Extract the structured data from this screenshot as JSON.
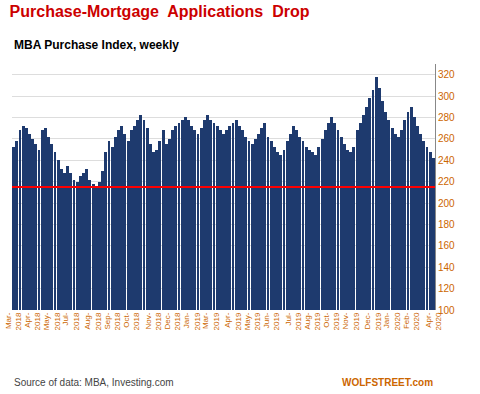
{
  "chart_data": {
    "type": "bar",
    "title": "Purchase-Mortgage  Applications  Drop",
    "title_color": "#cc0000",
    "subtitle": "MBA Purchase Index, weekly",
    "subtitle_color": "#000000",
    "annotations": [
      "Source of data: MBA, Investing.com",
      "WOLFSTREET.com"
    ],
    "color": "#1e3a6e",
    "reference_line": {
      "value": 215,
      "color": "red"
    },
    "ylim": [
      100,
      330
    ],
    "yticks": [
      100,
      120,
      140,
      160,
      180,
      200,
      220,
      240,
      260,
      280,
      300,
      320
    ],
    "grid": true,
    "categories": [
      "Mar-\n2018",
      null,
      null,
      null,
      null,
      null,
      "Apr-\n2018",
      null,
      null,
      null,
      null,
      null,
      "May-\n2018",
      null,
      null,
      null,
      null,
      null,
      "Jul-\n2018",
      null,
      null,
      null,
      null,
      null,
      null,
      "Aug-\n2018",
      null,
      null,
      null,
      null,
      null,
      "Sep-\n2018",
      null,
      null,
      null,
      null,
      null,
      "Oct-\n2018",
      null,
      null,
      null,
      null,
      null,
      null,
      "Nov-\n2018",
      null,
      null,
      null,
      null,
      null,
      "Dec-\n2018",
      null,
      null,
      null,
      null,
      null,
      "Jan-\n2019",
      null,
      null,
      null,
      null,
      null,
      "Mar-\n2019",
      null,
      null,
      null,
      null,
      null,
      null,
      "Apr-\n2019",
      null,
      null,
      null,
      null,
      null,
      "May-\n2019",
      null,
      null,
      null,
      null,
      null,
      "Jun-\n2019",
      null,
      null,
      null,
      null,
      null,
      null,
      "Jul-\n2019",
      null,
      null,
      null,
      null,
      null,
      "Aug-\n2019",
      null,
      null,
      null,
      null,
      null,
      "Oct-\n2019",
      null,
      null,
      null,
      null,
      null,
      "Nov-\n2019",
      null,
      null,
      null,
      null,
      null,
      null,
      "Dec-\n2019",
      null,
      null,
      null,
      null,
      null,
      "Jan-\n2020",
      null,
      null,
      null,
      null,
      null,
      "Feb-\n2020",
      null,
      null,
      null,
      null,
      null,
      null,
      "Apr-\n2020"
    ],
    "values": [
      252,
      258,
      268,
      272,
      270,
      265,
      260,
      255,
      250,
      268,
      270,
      262,
      255,
      248,
      240,
      232,
      228,
      235,
      228,
      222,
      220,
      225,
      228,
      232,
      222,
      218,
      215,
      220,
      230,
      248,
      258,
      252,
      262,
      268,
      272,
      265,
      258,
      268,
      272,
      278,
      282,
      278,
      270,
      255,
      248,
      250,
      258,
      268,
      255,
      260,
      268,
      272,
      275,
      278,
      280,
      278,
      272,
      268,
      265,
      270,
      278,
      282,
      278,
      275,
      272,
      268,
      265,
      268,
      272,
      275,
      278,
      272,
      268,
      262,
      258,
      255,
      260,
      265,
      270,
      275,
      262,
      258,
      252,
      248,
      245,
      250,
      258,
      265,
      272,
      268,
      262,
      258,
      252,
      250,
      248,
      245,
      252,
      260,
      268,
      275,
      280,
      275,
      268,
      262,
      255,
      250,
      248,
      252,
      268,
      275,
      282,
      290,
      298,
      306,
      318,
      308,
      295,
      285,
      278,
      270,
      265,
      262,
      268,
      278,
      285,
      290,
      280,
      272,
      265,
      258,
      252,
      248,
      242
    ]
  }
}
